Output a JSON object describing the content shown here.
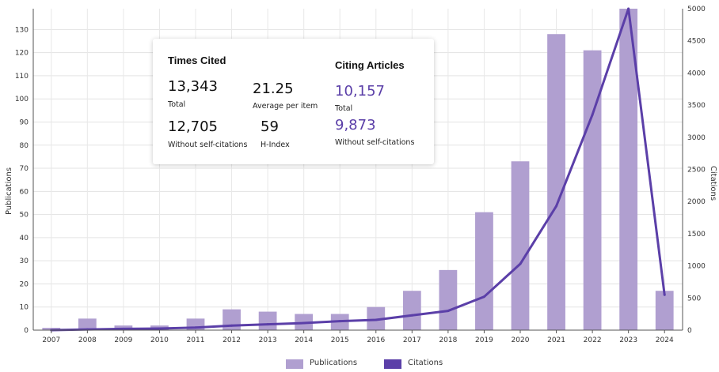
{
  "chart_data": {
    "type": "bar+line",
    "categories": [
      "2007",
      "2008",
      "2009",
      "2010",
      "2011",
      "2012",
      "2013",
      "2014",
      "2015",
      "2016",
      "2017",
      "2018",
      "2019",
      "2020",
      "2021",
      "2022",
      "2023",
      "2024"
    ],
    "series": [
      {
        "name": "Publications",
        "type": "bar",
        "axis": "left",
        "color": "#b09fd0",
        "values": [
          1,
          5,
          2,
          2,
          5,
          9,
          8,
          7,
          7,
          10,
          17,
          26,
          51,
          73,
          128,
          121,
          139,
          17
        ]
      },
      {
        "name": "Citations",
        "type": "line",
        "axis": "right",
        "color": "#5b3fa8",
        "values": [
          0,
          10,
          20,
          25,
          40,
          70,
          90,
          110,
          140,
          160,
          230,
          300,
          520,
          1030,
          1930,
          3350,
          5000,
          550
        ]
      }
    ],
    "xlabel": "",
    "ylabel": "Publications",
    "y2label": "Citations",
    "ylim": [
      0,
      139
    ],
    "yticks": [
      0,
      10,
      20,
      30,
      40,
      50,
      60,
      70,
      80,
      90,
      100,
      110,
      120,
      130
    ],
    "y2lim": [
      0,
      5000
    ],
    "y2ticks": [
      0,
      500,
      1000,
      1500,
      2000,
      2500,
      3000,
      3500,
      4000,
      4500,
      5000
    ],
    "grid": true,
    "legend_position": "bottom-center"
  },
  "stats": {
    "times_cited": {
      "heading": "Times Cited",
      "total_value": "13,343",
      "total_label": "Total",
      "avg_value": "21.25",
      "avg_label": "Average per item",
      "without_value": "12,705",
      "without_label": "Without self-citations",
      "hindex_value": "59",
      "hindex_label": "H-Index"
    },
    "citing_articles": {
      "heading": "Citing Articles",
      "total_value": "10,157",
      "total_label": "Total",
      "without_value": "9,873",
      "without_label": "Without self-citations"
    }
  },
  "legend": {
    "publications": "Publications",
    "citations": "Citations"
  }
}
